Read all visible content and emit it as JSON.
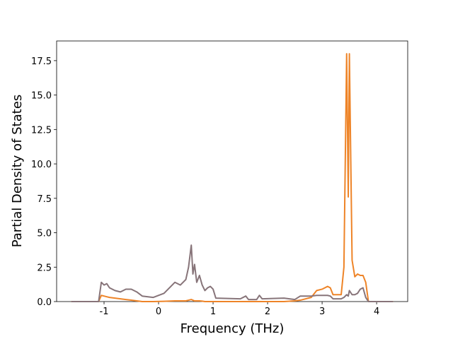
{
  "chart_data": {
    "type": "line",
    "xlabel": "Frequency (THz)",
    "ylabel": "Partial Density of States",
    "x": [
      -1.6,
      -1.1,
      -1.05,
      -1.0,
      -0.95,
      -0.9,
      -0.8,
      -0.7,
      -0.6,
      -0.5,
      -0.4,
      -0.3,
      -0.1,
      0.1,
      0.3,
      0.4,
      0.5,
      0.55,
      0.6,
      0.63,
      0.66,
      0.7,
      0.75,
      0.8,
      0.85,
      0.9,
      0.95,
      1.0,
      1.05,
      1.5,
      1.6,
      1.65,
      1.8,
      1.85,
      1.9,
      2.3,
      2.5,
      2.6,
      2.8,
      2.9,
      3.0,
      3.1,
      3.15,
      3.2,
      3.35,
      3.4,
      3.45,
      3.48,
      3.5,
      3.55,
      3.6,
      3.65,
      3.7,
      3.75,
      3.8,
      3.85,
      4.3
    ],
    "series": [
      {
        "color": "#ee8428",
        "values": [
          0,
          0,
          0.45,
          0.4,
          0.35,
          0.3,
          0.25,
          0.2,
          0.15,
          0.1,
          0.05,
          0,
          0,
          0.02,
          0.05,
          0.05,
          0.05,
          0.1,
          0.15,
          0.1,
          0.05,
          0.05,
          0.05,
          0.03,
          0,
          0,
          0,
          0,
          0,
          0,
          0,
          0,
          0,
          0,
          0,
          0,
          0.05,
          0.1,
          0.3,
          0.8,
          0.9,
          1.1,
          1.0,
          0.5,
          0.5,
          2.5,
          18.0,
          7.6,
          18.0,
          3.0,
          1.8,
          2.0,
          1.9,
          1.9,
          1.4,
          0,
          0
        ]
      },
      {
        "color": "#877479",
        "values": [
          0,
          0,
          1.4,
          1.2,
          1.3,
          1.0,
          0.8,
          0.7,
          0.9,
          0.9,
          0.7,
          0.4,
          0.3,
          0.6,
          1.4,
          1.2,
          1.6,
          2.5,
          4.1,
          2.0,
          2.7,
          1.4,
          1.9,
          1.2,
          0.8,
          1.0,
          1.1,
          0.9,
          0.25,
          0.2,
          0.4,
          0.15,
          0.15,
          0.45,
          0.2,
          0.25,
          0.15,
          0.4,
          0.4,
          0.45,
          0.45,
          0.45,
          0.4,
          0.2,
          0.2,
          0.3,
          0.5,
          0.4,
          0.8,
          0.5,
          0.5,
          0.6,
          0.9,
          1.0,
          0.3,
          0,
          0
        ]
      }
    ],
    "xlim": [
      -1.87,
      4.57
    ],
    "xticks": [
      -1,
      0,
      1,
      2,
      3,
      4
    ],
    "ylim": [
      0,
      18.93
    ],
    "yticks": [
      {
        "value": 0,
        "label": "0.0"
      },
      2.5,
      {
        "value": 5,
        "label": "5.0"
      },
      7.5,
      {
        "value": 10,
        "label": "10.0"
      },
      12.5,
      {
        "value": 15,
        "label": "15.0"
      },
      17.5
    ]
  }
}
